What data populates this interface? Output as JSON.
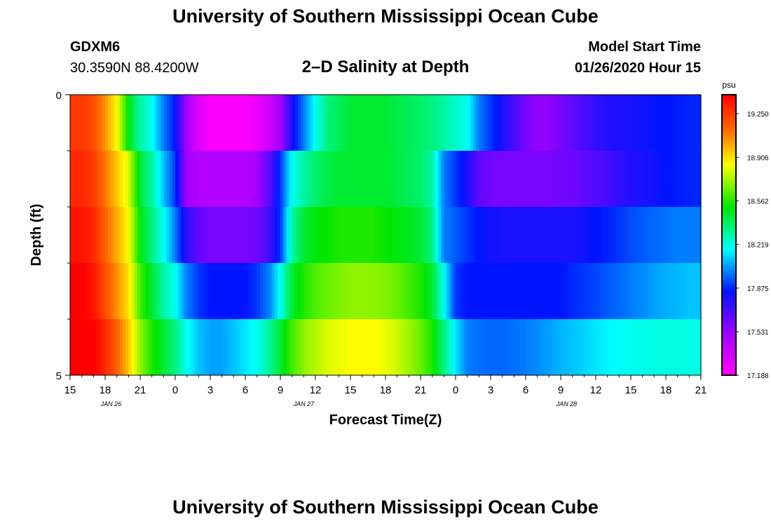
{
  "header": {
    "title": "University of Southern Mississippi Ocean Cube",
    "station_id": "GDXM6",
    "station_coords": "30.3590N 88.4200W",
    "plot_title": "2–D Salinity at Depth",
    "start_label": "Model Start Time",
    "start_value": "01/26/2020 Hour 15"
  },
  "footer": {
    "title": "University of Southern Mississippi Ocean Cube"
  },
  "chart_data": {
    "type": "heatmap",
    "title": "2–D Salinity at Depth",
    "xlabel": "Forecast Time(Z)",
    "ylabel": "Depth (ft)",
    "x_tick_labels": [
      "15",
      "18",
      "21",
      "0",
      "3",
      "6",
      "9",
      "12",
      "15",
      "18",
      "21",
      "0",
      "3",
      "6",
      "9",
      "12",
      "15",
      "18",
      "21"
    ],
    "x_date_labels": [
      {
        "label": "JAN  26",
        "hours": 3.5
      },
      {
        "label": "JAN  27",
        "hours": 20
      },
      {
        "label": "JAN  28",
        "hours": 42.5
      }
    ],
    "x_range_hours": [
      0,
      54
    ],
    "y_tick_labels": [
      {
        "label": "0",
        "value": 0
      },
      {
        "label": "5",
        "value": 5
      }
    ],
    "ylim": [
      0,
      5
    ],
    "depth_layers": [
      0.5,
      1.5,
      2.5,
      3.5,
      4.5
    ],
    "time_hours": [
      0,
      1,
      2,
      3,
      4,
      5,
      6,
      7,
      8,
      9,
      10,
      11,
      12,
      13,
      14,
      15,
      16,
      17,
      18,
      19,
      20,
      21,
      22,
      23,
      24,
      25,
      26,
      27,
      28,
      29,
      30,
      31,
      32,
      33,
      34,
      35,
      36,
      37,
      38,
      39,
      40,
      41,
      42,
      43,
      44,
      45,
      46,
      47,
      48,
      49,
      50,
      51,
      52,
      53,
      54
    ],
    "values": [
      [
        19.25,
        19.25,
        19.2,
        19.05,
        18.85,
        18.5,
        18.3,
        18.2,
        18.0,
        17.85,
        17.5,
        17.3,
        17.2,
        17.2,
        17.2,
        17.2,
        17.25,
        17.35,
        17.5,
        17.8,
        18.0,
        18.2,
        18.35,
        18.4,
        18.45,
        18.45,
        18.45,
        18.45,
        18.42,
        18.4,
        18.38,
        18.35,
        18.3,
        18.25,
        18.2,
        18.0,
        17.9,
        17.8,
        17.7,
        17.6,
        17.55,
        17.55,
        17.6,
        17.65,
        17.7,
        17.75,
        17.78,
        17.8,
        17.8,
        17.82,
        17.85,
        17.85,
        17.86,
        17.87,
        17.88
      ],
      [
        19.3,
        19.3,
        19.25,
        19.1,
        18.95,
        18.8,
        18.45,
        18.3,
        18.1,
        17.9,
        17.5,
        17.45,
        17.45,
        17.45,
        17.45,
        17.45,
        17.5,
        17.65,
        17.9,
        18.2,
        18.3,
        18.38,
        18.42,
        18.45,
        18.45,
        18.45,
        18.45,
        18.45,
        18.43,
        18.4,
        18.38,
        18.3,
        18.0,
        17.9,
        17.8,
        17.65,
        17.62,
        17.6,
        17.6,
        17.6,
        17.6,
        17.6,
        17.62,
        17.62,
        17.65,
        17.68,
        17.7,
        17.75,
        17.78,
        17.8,
        17.82,
        17.85,
        17.86,
        17.87,
        17.88
      ],
      [
        19.35,
        19.35,
        19.3,
        19.15,
        19.0,
        18.85,
        18.5,
        18.35,
        18.2,
        18.0,
        17.75,
        17.65,
        17.6,
        17.6,
        17.6,
        17.6,
        17.62,
        17.7,
        17.9,
        18.3,
        18.45,
        18.5,
        18.52,
        18.55,
        18.55,
        18.55,
        18.55,
        18.52,
        18.5,
        18.48,
        18.45,
        18.35,
        18.0,
        17.95,
        17.9,
        17.85,
        17.82,
        17.8,
        17.8,
        17.8,
        17.8,
        17.8,
        17.8,
        17.8,
        17.82,
        17.85,
        17.87,
        17.9,
        17.93,
        17.95,
        17.97,
        17.98,
        18.0,
        18.0,
        18.0
      ],
      [
        19.4,
        19.4,
        19.35,
        19.2,
        19.05,
        18.9,
        18.6,
        18.45,
        18.3,
        18.2,
        18.0,
        17.9,
        17.85,
        17.85,
        17.85,
        17.85,
        17.9,
        18.0,
        18.2,
        18.45,
        18.55,
        18.62,
        18.65,
        18.68,
        18.7,
        18.7,
        18.7,
        18.68,
        18.65,
        18.6,
        18.55,
        18.45,
        18.2,
        17.9,
        17.85,
        17.85,
        17.85,
        17.85,
        17.85,
        17.85,
        17.85,
        17.85,
        17.85,
        17.88,
        17.9,
        17.92,
        17.95,
        17.97,
        18.0,
        18.02,
        18.05,
        18.07,
        18.08,
        18.1,
        18.1
      ],
      [
        19.45,
        19.45,
        19.4,
        19.3,
        19.15,
        18.95,
        18.7,
        18.55,
        18.45,
        18.35,
        18.2,
        18.1,
        18.05,
        18.05,
        18.1,
        18.15,
        18.2,
        18.3,
        18.45,
        18.6,
        18.7,
        18.75,
        18.8,
        18.82,
        18.85,
        18.85,
        18.85,
        18.82,
        18.78,
        18.72,
        18.65,
        18.55,
        18.35,
        18.15,
        18.0,
        17.98,
        17.97,
        17.97,
        17.98,
        18.0,
        18.02,
        18.05,
        18.08,
        18.1,
        18.12,
        18.15,
        18.17,
        18.19,
        18.2,
        18.21,
        18.22,
        18.22,
        18.22,
        18.22,
        18.22
      ]
    ],
    "colorbar": {
      "unit": "psu",
      "min": 17.188,
      "max": 19.4,
      "tick_labels": [
        "19.250",
        "18.906",
        "18.562",
        "18.219",
        "17.875",
        "17.531",
        "17.188"
      ],
      "tick_values": [
        19.25,
        18.906,
        18.562,
        18.219,
        17.875,
        17.531,
        17.188
      ]
    },
    "grid": false
  }
}
